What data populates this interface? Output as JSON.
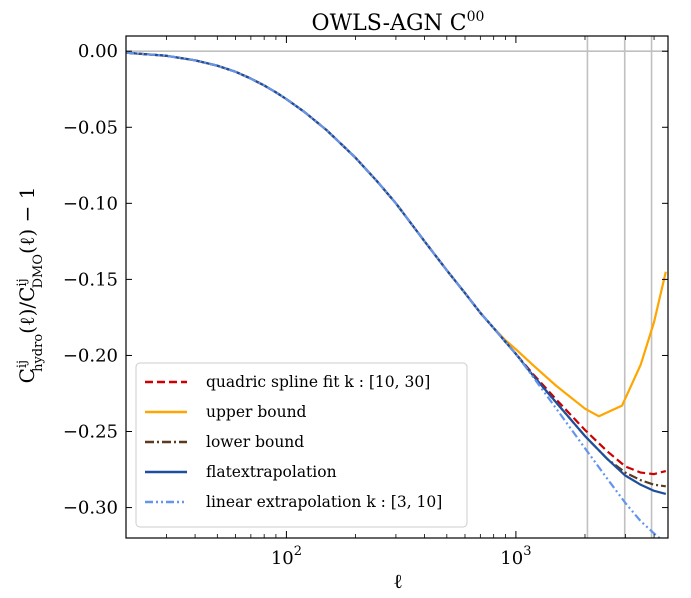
{
  "chart_data": {
    "type": "line",
    "title": "OWLS-AGN  C",
    "title_sup": "00",
    "xlabel": "ℓ",
    "ylabel": "C",
    "ylabel_sup": "ij",
    "ylabel_sub": "hydro",
    "ylabel_mid": "(ℓ)/C",
    "ylabel_sup2": "ij",
    "ylabel_sub2": "DMO",
    "ylabel_tail": "(ℓ) − 1",
    "xscale": "log",
    "xlim": [
      20,
      4600
    ],
    "ylim": [
      -0.32,
      0.01
    ],
    "x_ticks": [
      {
        "value": 100,
        "base": "10",
        "exp": "2"
      },
      {
        "value": 1000,
        "base": "10",
        "exp": "3"
      }
    ],
    "y_ticks": [
      {
        "value": 0.0,
        "label": "0.00"
      },
      {
        "value": -0.05,
        "label": "−0.05"
      },
      {
        "value": -0.1,
        "label": "−0.10"
      },
      {
        "value": -0.15,
        "label": "−0.15"
      },
      {
        "value": -0.2,
        "label": "−0.20"
      },
      {
        "value": -0.25,
        "label": "−0.25"
      },
      {
        "value": -0.3,
        "label": "−0.30"
      }
    ],
    "reference_lines": {
      "horizontal": [
        0.0
      ],
      "vertical": [
        2050,
        2980,
        3900
      ],
      "color": "#c0c0c0"
    },
    "legend_position": "lower-left",
    "series": [
      {
        "name": "quadric spline fit   k : [10, 30]",
        "color": "#cc0000",
        "style": "dashed",
        "x": [
          20,
          30,
          40,
          50,
          60,
          70,
          80,
          90,
          100,
          120,
          150,
          200,
          250,
          300,
          400,
          500,
          600,
          700,
          800,
          900,
          1000,
          1200,
          1500,
          2000,
          2500,
          3000,
          3500,
          4000,
          4500
        ],
        "y": [
          -0.001,
          -0.003,
          -0.006,
          -0.0095,
          -0.0135,
          -0.018,
          -0.0225,
          -0.027,
          -0.0315,
          -0.04,
          -0.052,
          -0.07,
          -0.086,
          -0.1,
          -0.125,
          -0.144,
          -0.159,
          -0.172,
          -0.182,
          -0.191,
          -0.199,
          -0.213,
          -0.229,
          -0.249,
          -0.263,
          -0.273,
          -0.277,
          -0.278,
          -0.276
        ]
      },
      {
        "name": "upper bound",
        "color": "#ffa500",
        "style": "solid",
        "x": [
          20,
          30,
          40,
          50,
          60,
          70,
          80,
          90,
          100,
          120,
          150,
          200,
          250,
          300,
          400,
          500,
          600,
          700,
          800,
          900,
          1000,
          1200,
          1500,
          2000,
          2300,
          2900,
          3500,
          4000,
          4500
        ],
        "y": [
          -0.001,
          -0.003,
          -0.006,
          -0.0095,
          -0.0135,
          -0.018,
          -0.0225,
          -0.027,
          -0.0315,
          -0.04,
          -0.052,
          -0.07,
          -0.086,
          -0.1,
          -0.125,
          -0.144,
          -0.159,
          -0.172,
          -0.182,
          -0.19,
          -0.196,
          -0.207,
          -0.22,
          -0.235,
          -0.24,
          -0.233,
          -0.206,
          -0.178,
          -0.145
        ]
      },
      {
        "name": "lower bound",
        "color": "#5c3a1e",
        "style": "dashdot",
        "x": [
          20,
          30,
          40,
          50,
          60,
          70,
          80,
          90,
          100,
          120,
          150,
          200,
          250,
          300,
          400,
          500,
          600,
          700,
          800,
          900,
          1000,
          1200,
          1500,
          2000,
          2500,
          3000,
          3500,
          4000,
          4500
        ],
        "y": [
          -0.001,
          -0.003,
          -0.006,
          -0.0095,
          -0.0135,
          -0.018,
          -0.0225,
          -0.027,
          -0.0315,
          -0.04,
          -0.052,
          -0.07,
          -0.086,
          -0.1,
          -0.125,
          -0.144,
          -0.159,
          -0.172,
          -0.182,
          -0.191,
          -0.199,
          -0.214,
          -0.231,
          -0.253,
          -0.268,
          -0.277,
          -0.282,
          -0.285,
          -0.286
        ]
      },
      {
        "name": "flatextrapolation",
        "color": "#1f4e9c",
        "style": "solid",
        "x": [
          20,
          30,
          40,
          50,
          60,
          70,
          80,
          90,
          100,
          120,
          150,
          200,
          250,
          300,
          400,
          500,
          600,
          700,
          800,
          900,
          1000,
          1200,
          1500,
          2000,
          2500,
          3000,
          3500,
          4000,
          4500
        ],
        "y": [
          -0.001,
          -0.003,
          -0.006,
          -0.0095,
          -0.0135,
          -0.018,
          -0.0225,
          -0.027,
          -0.0315,
          -0.04,
          -0.052,
          -0.07,
          -0.086,
          -0.1,
          -0.125,
          -0.144,
          -0.159,
          -0.172,
          -0.182,
          -0.191,
          -0.199,
          -0.214,
          -0.231,
          -0.253,
          -0.268,
          -0.279,
          -0.285,
          -0.289,
          -0.291
        ]
      },
      {
        "name": "linear extrapolation   k : [3, 10]",
        "color": "#6495ed",
        "style": "dashdotdot",
        "x": [
          20,
          30,
          40,
          50,
          60,
          70,
          80,
          90,
          100,
          120,
          150,
          200,
          250,
          300,
          400,
          500,
          600,
          700,
          800,
          900,
          1000,
          1200,
          1500,
          2000,
          2500,
          3000,
          3500,
          4000,
          4300
        ],
        "y": [
          -0.001,
          -0.003,
          -0.006,
          -0.0095,
          -0.0135,
          -0.018,
          -0.0225,
          -0.027,
          -0.0315,
          -0.04,
          -0.052,
          -0.07,
          -0.086,
          -0.1,
          -0.125,
          -0.144,
          -0.159,
          -0.172,
          -0.182,
          -0.191,
          -0.199,
          -0.215,
          -0.235,
          -0.261,
          -0.281,
          -0.297,
          -0.309,
          -0.317,
          -0.321
        ]
      }
    ]
  }
}
